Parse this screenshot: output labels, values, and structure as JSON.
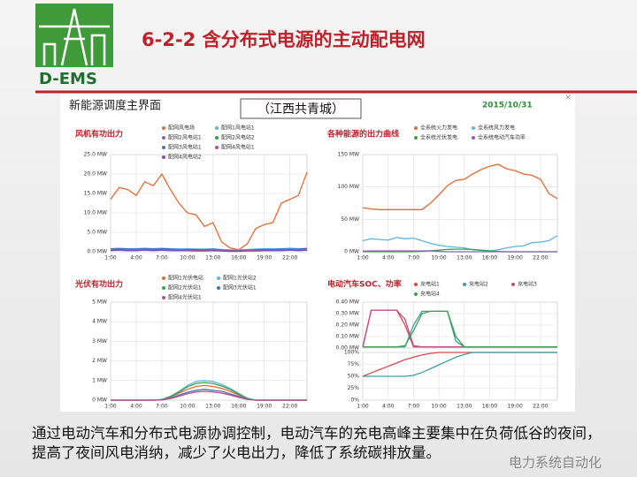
{
  "logo": "D-EMS",
  "title": "6-2-2 含分布式电源的主动配电网",
  "panel": {
    "title": "新能源调度主界面",
    "location": "（江西共青城）",
    "date": "2015/10/31",
    "close": "×"
  },
  "caption": "通过电动汽车和分布式电源协调控制，电动汽车的充电高峰主要集中在负荷低谷的夜间，提高了夜间风电消纳，减少了火电出力，降低了系统碳排放量。",
  "watermark": "电力系统自动化",
  "chart_data": [
    {
      "type": "line",
      "title": "风机有功出力",
      "grid": true,
      "categories": [
        "1:00",
        null,
        null,
        "4:00",
        null,
        null,
        "7:00",
        null,
        null,
        "10:00",
        null,
        null,
        "13:00",
        null,
        null,
        "16:00",
        null,
        null,
        "19:00",
        null,
        null,
        "22:00",
        null,
        null
      ],
      "ylim": [
        0,
        25
      ],
      "yticks": [
        {
          "value": 0,
          "label": "0.0 MW"
        },
        {
          "value": 5,
          "label": "5.0 MW"
        },
        {
          "value": 10,
          "label": "10.0 MW"
        },
        {
          "value": 15,
          "label": "15.0 MW"
        },
        {
          "value": 20,
          "label": "20.0 MW"
        },
        {
          "value": 25,
          "label": "25.0 MW"
        }
      ],
      "series": [
        {
          "name": "配网风电场",
          "color": "#e8692e",
          "values": [
            13.5,
            16.5,
            16,
            14.5,
            18,
            17,
            20,
            16,
            12.5,
            10,
            9.5,
            6.5,
            7.5,
            2.5,
            1,
            0.5,
            2,
            6,
            7,
            7.5,
            12.5,
            13.5,
            14.5,
            20.5
          ]
        },
        {
          "name": "配网1风电站1",
          "color": "#5bb5e0",
          "values": [
            0.8,
            0.9,
            0.8,
            0.8,
            0.9,
            0.8,
            0.9,
            0.8,
            0.7,
            0.8,
            0.7,
            0.7,
            0.8,
            0.6,
            0.5,
            0.5,
            0.6,
            0.7,
            0.8,
            0.8,
            0.8,
            0.9,
            0.8,
            0.9
          ]
        },
        {
          "name": "配网2风电站1",
          "color": "#8e5fb8",
          "values": [
            0.4,
            0.5,
            0.4,
            0.4,
            0.5,
            0.4,
            0.5,
            0.4,
            0.4,
            0.4,
            0.3,
            0.3,
            0.4,
            0.3,
            0.2,
            0.2,
            0.3,
            0.3,
            0.4,
            0.4,
            0.4,
            0.5,
            0.4,
            0.5
          ]
        },
        {
          "name": "配网2风电站2",
          "color": "#3aa04a",
          "values": [
            0.6,
            0.7,
            0.6,
            0.6,
            0.7,
            0.6,
            0.7,
            0.6,
            0.5,
            0.5,
            0.5,
            0.4,
            0.5,
            0.3,
            0.2,
            0.2,
            0.3,
            0.4,
            0.5,
            0.5,
            0.6,
            0.6,
            0.6,
            0.7
          ]
        },
        {
          "name": "配网3风电站1",
          "color": "#3e6fc0",
          "values": [
            0.7,
            0.8,
            0.7,
            0.7,
            0.8,
            0.7,
            0.8,
            0.7,
            0.6,
            0.6,
            0.6,
            0.5,
            0.6,
            0.4,
            0.3,
            0.3,
            0.4,
            0.5,
            0.6,
            0.6,
            0.7,
            0.7,
            0.7,
            0.8
          ]
        },
        {
          "name": "配网4风电站1",
          "color": "#c44a8c",
          "values": [
            0.5,
            0.6,
            0.5,
            0.5,
            0.6,
            0.5,
            0.6,
            0.5,
            0.4,
            0.4,
            0.4,
            0.3,
            0.4,
            0.3,
            0.2,
            0.2,
            0.3,
            0.3,
            0.4,
            0.4,
            0.5,
            0.5,
            0.5,
            0.6
          ]
        },
        {
          "name": "配网4风电站2",
          "color": "#7a52b0",
          "values": [
            0.3,
            0.4,
            0.3,
            0.3,
            0.4,
            0.3,
            0.4,
            0.3,
            0.3,
            0.3,
            0.2,
            0.2,
            0.3,
            0.2,
            0.1,
            0.1,
            0.2,
            0.2,
            0.3,
            0.3,
            0.3,
            0.4,
            0.3,
            0.4
          ]
        }
      ]
    },
    {
      "type": "line",
      "title": "各种能源的出力曲线",
      "grid": true,
      "categories": [
        "1:00",
        null,
        null,
        "4:00",
        null,
        null,
        "7:00",
        null,
        null,
        "10:00",
        null,
        null,
        "13:00",
        null,
        null,
        "16:00",
        null,
        null,
        "19:00",
        null,
        null,
        "22:00",
        null,
        null
      ],
      "ylim": [
        0,
        150
      ],
      "yticks": [
        {
          "value": 0,
          "label": "0 MW"
        },
        {
          "value": 50,
          "label": "50 MW"
        },
        {
          "value": 100,
          "label": "100 MW"
        },
        {
          "value": 150,
          "label": "150 MW"
        }
      ],
      "series": [
        {
          "name": "全系统火力发电",
          "color": "#e8692e",
          "values": [
            68,
            66,
            65,
            65,
            65,
            65,
            65,
            65,
            75,
            88,
            102,
            110,
            112,
            120,
            127,
            132,
            135,
            128,
            125,
            120,
            118,
            112,
            90,
            82
          ]
        },
        {
          "name": "全系统风力发电",
          "color": "#5bb5e0",
          "values": [
            17,
            20,
            19,
            18,
            22,
            20,
            21,
            17,
            13,
            10,
            8,
            7,
            6,
            3,
            2,
            1,
            3,
            6,
            8,
            9,
            14,
            15,
            17,
            25
          ]
        },
        {
          "name": "全系统光伏发电",
          "color": "#3aa04a",
          "values": [
            0,
            0,
            0,
            0,
            0,
            0,
            0,
            0.5,
            1.5,
            2.5,
            3.5,
            4,
            4,
            3.5,
            2.5,
            1.5,
            0.5,
            0,
            0,
            0,
            0,
            0,
            0,
            0
          ]
        },
        {
          "name": "全系统电动汽车功率",
          "color": "#8e5fb8",
          "values": [
            1,
            1.3,
            1.3,
            1.3,
            1.3,
            1.3,
            1.3,
            1.3,
            1.3,
            0.5,
            0,
            0,
            0,
            0,
            0,
            0,
            0,
            0,
            0,
            0,
            0,
            0,
            0,
            0
          ]
        }
      ]
    },
    {
      "type": "line",
      "title": "光伏有功出力",
      "grid": true,
      "categories": [
        "1:00",
        null,
        null,
        "4:00",
        null,
        null,
        "7:00",
        null,
        null,
        "10:00",
        null,
        null,
        "13:00",
        null,
        null,
        "16:00",
        null,
        null,
        "19:00",
        null,
        null,
        "22:00",
        null,
        null
      ],
      "ylim": [
        0,
        5
      ],
      "yticks": [
        {
          "value": 0,
          "label": "0 MW"
        },
        {
          "value": 1,
          "label": "1 MW"
        },
        {
          "value": 2,
          "label": "2 MW"
        },
        {
          "value": 3,
          "label": "3 MW"
        },
        {
          "value": 4,
          "label": "4 MW"
        },
        {
          "value": 5,
          "label": "5 MW"
        }
      ],
      "series": [
        {
          "name": "配网1光伏电站",
          "color": "#e8692e",
          "values": [
            0,
            0,
            0,
            0,
            0,
            0,
            0.02,
            0.15,
            0.35,
            0.55,
            0.7,
            0.75,
            0.7,
            0.6,
            0.45,
            0.25,
            0.08,
            0,
            0,
            0,
            0,
            0,
            0,
            0
          ]
        },
        {
          "name": "配网1光伏站2",
          "color": "#5bb5e0",
          "values": [
            0,
            0,
            0,
            0,
            0,
            0,
            0.03,
            0.2,
            0.45,
            0.75,
            0.95,
            1,
            0.95,
            0.8,
            0.6,
            0.35,
            0.1,
            0,
            0,
            0,
            0,
            0,
            0,
            0
          ]
        },
        {
          "name": "配网2光伏站1",
          "color": "#3aa04a",
          "values": [
            0,
            0,
            0,
            0,
            0,
            0,
            0.03,
            0.18,
            0.4,
            0.68,
            0.85,
            0.9,
            0.85,
            0.72,
            0.55,
            0.3,
            0.09,
            0,
            0,
            0,
            0,
            0,
            0,
            0
          ]
        },
        {
          "name": "配网3光伏站1",
          "color": "#3e6fc0",
          "values": [
            0,
            0,
            0,
            0,
            0,
            0,
            0.02,
            0.1,
            0.25,
            0.4,
            0.5,
            0.55,
            0.5,
            0.45,
            0.32,
            0.18,
            0.05,
            0,
            0,
            0,
            0,
            0,
            0,
            0
          ]
        },
        {
          "name": "配网4光伏站1",
          "color": "#c44a8c",
          "values": [
            0,
            0,
            0,
            0,
            0,
            0,
            0.01,
            0.08,
            0.2,
            0.33,
            0.42,
            0.45,
            0.42,
            0.36,
            0.26,
            0.14,
            0.04,
            0,
            0,
            0,
            0,
            0,
            0,
            0
          ]
        }
      ]
    },
    {
      "type": "line",
      "title": "电动汽车SOC、功率",
      "grid": true,
      "categories": [
        "1:00",
        null,
        null,
        "4:00",
        null,
        null,
        "7:00",
        null,
        null,
        "10:00",
        null,
        null,
        "13:00",
        null,
        null,
        "16:00",
        null,
        null,
        "19:00",
        null,
        null,
        "22:00",
        null,
        null
      ],
      "panels": [
        {
          "ylim": [
            0,
            0.4
          ],
          "yticks": [
            {
              "value": 0,
              "label": "0.00 MW"
            },
            {
              "value": 0.1,
              "label": "0.10 MW"
            },
            {
              "value": 0.2,
              "label": "0.20 MW"
            },
            {
              "value": 0.3,
              "label": "0.30 MW"
            },
            {
              "value": 0.4,
              "label": "0.40 MW"
            }
          ],
          "series": [
            {
              "name": "充电站1",
              "color": "#e0454a",
              "values": [
                0.01,
                0.33,
                0.33,
                0.33,
                0.33,
                0.2,
                0.01,
                0.01,
                0.01,
                0.01,
                0.01,
                0.01,
                0.01,
                0.01,
                0.01,
                0.01,
                0.01,
                0.01,
                0.01,
                0.01,
                0.01,
                0.01,
                0.01,
                0.01
              ]
            },
            {
              "name": "充电站2",
              "color": "#3aa0a0",
              "values": [
                0.01,
                0.01,
                0.01,
                0.01,
                0.01,
                0.01,
                0.2,
                0.32,
                0.32,
                0.32,
                0.32,
                0.06,
                0.01,
                0.01,
                0.01,
                0.01,
                0.01,
                0.01,
                0.01,
                0.01,
                0.01,
                0.01,
                0.01,
                0.01
              ]
            },
            {
              "name": "充电站3",
              "color": "#c44a8c",
              "values": [
                0.01,
                0.33,
                0.33,
                0.33,
                0.33,
                0.25,
                0.02,
                0.01,
                0.01,
                0.01,
                0.01,
                0.01,
                0.01,
                0.01,
                0.01,
                0.01,
                0.01,
                0.01,
                0.01,
                0.01,
                0.01,
                0.01,
                0.01,
                0.01
              ]
            },
            {
              "name": "充电站4",
              "color": "#3aa04a",
              "values": [
                0.01,
                0.01,
                0.01,
                0.01,
                0.01,
                0.02,
                0.15,
                0.3,
                0.32,
                0.32,
                0.32,
                0.1,
                0.01,
                0.01,
                0.01,
                0.01,
                0.01,
                0.01,
                0.01,
                0.01,
                0.01,
                0.01,
                0.01,
                0.01
              ]
            }
          ]
        },
        {
          "ylim": [
            0,
            100
          ],
          "yticks": [
            {
              "value": 0,
              "label": "0%"
            },
            {
              "value": 25,
              "label": "25%"
            },
            {
              "value": 50,
              "label": "50%"
            },
            {
              "value": 75,
              "label": "75%"
            },
            {
              "value": 100,
              "label": "100%"
            }
          ],
          "series": [
            {
              "color": "#e0454a",
              "values": [
                50,
                57,
                64,
                71,
                78,
                85,
                90,
                95,
                98,
                100,
                100,
                100,
                100,
                100,
                100,
                100,
                100,
                100,
                100,
                100,
                100,
                100,
                100,
                100
              ]
            },
            {
              "color": "#3aa0a0",
              "values": [
                50,
                50,
                50,
                50,
                50,
                50,
                52,
                58,
                66,
                74,
                82,
                90,
                96,
                100,
                100,
                100,
                100,
                100,
                100,
                100,
                100,
                100,
                100,
                100
              ]
            }
          ]
        }
      ]
    }
  ]
}
